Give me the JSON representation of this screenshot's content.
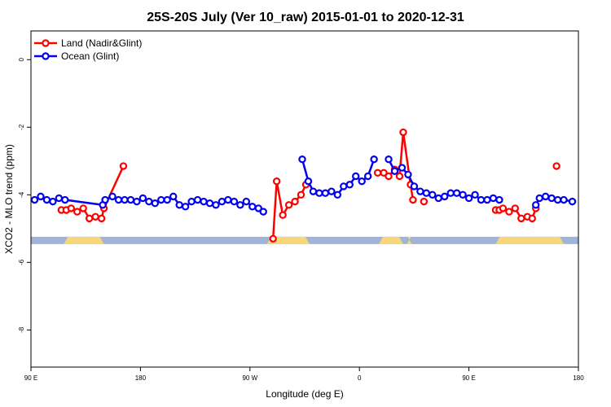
{
  "chart_data": {
    "type": "line",
    "title": "25S-20S July (Ver 10_raw)   2015-01-01 to 2020-12-31",
    "xlabel": "Longitude (deg E)",
    "ylabel": "XCO2 - MLO trend (ppm)",
    "x_ticks": [
      {
        "value": 90,
        "label": "90 E"
      },
      {
        "value": 180,
        "label": "180"
      },
      {
        "value": 270,
        "label": "90 W"
      },
      {
        "value": 360,
        "label": "0"
      },
      {
        "value": 450,
        "label": "90 E"
      },
      {
        "value": 540,
        "label": "180"
      }
    ],
    "y_ticks": [
      {
        "value": 0,
        "label": "0"
      },
      {
        "value": -2,
        "label": "-2"
      },
      {
        "value": -4,
        "label": "-4"
      },
      {
        "value": -6,
        "label": "-6"
      },
      {
        "value": -8,
        "label": "-8"
      }
    ],
    "xlim": [
      90,
      540
    ],
    "ylim": [
      -9.1,
      0.85
    ],
    "grid": false,
    "legend_position": "top-left",
    "surface_band": {
      "y": -5.35,
      "ocean_color": "#a0b4d8",
      "land_color": "#f8d77a",
      "land_ranges": [
        [
          117,
          150
        ],
        [
          284,
          319
        ],
        [
          376,
          396
        ],
        [
          399,
          403
        ],
        [
          472,
          528
        ]
      ]
    },
    "series": [
      {
        "name": "Land (Nadir&Glint)",
        "color": "#ff0000",
        "segments": [
          [
            [
              115,
              -4.45
            ],
            [
              119,
              -4.45
            ],
            [
              123,
              -4.4
            ],
            [
              128,
              -4.5
            ],
            [
              133,
              -4.4
            ],
            [
              138,
              -4.7
            ],
            [
              143,
              -4.65
            ],
            [
              148,
              -4.7
            ],
            [
              150,
              -4.4
            ],
            [
              166,
              -3.15
            ]
          ],
          [
            [
              289,
              -5.3
            ],
            [
              292,
              -3.6
            ],
            [
              297,
              -4.6
            ],
            [
              302,
              -4.3
            ],
            [
              307,
              -4.2
            ],
            [
              312,
              -4.0
            ],
            [
              316,
              -3.7
            ]
          ],
          [
            [
              375,
              -3.35
            ],
            [
              380,
              -3.35
            ],
            [
              384,
              -3.45
            ],
            [
              389,
              -3.25
            ],
            [
              393,
              -3.45
            ],
            [
              396,
              -2.15
            ],
            [
              402,
              -3.7
            ],
            [
              404,
              -4.15
            ]
          ],
          [
            [
              413,
              -4.2
            ]
          ],
          [
            [
              472,
              -4.45
            ],
            [
              475,
              -4.45
            ],
            [
              478,
              -4.4
            ],
            [
              483,
              -4.5
            ],
            [
              488,
              -4.4
            ],
            [
              493,
              -4.7
            ],
            [
              498,
              -4.65
            ],
            [
              502,
              -4.7
            ],
            [
              505,
              -4.4
            ]
          ],
          [
            [
              522,
              -3.15
            ]
          ]
        ]
      },
      {
        "name": "Ocean (Glint)",
        "color": "#0000ee",
        "segments": [
          [
            [
              93,
              -4.15
            ],
            [
              98,
              -4.05
            ],
            [
              103,
              -4.15
            ],
            [
              108,
              -4.2
            ],
            [
              113,
              -4.1
            ],
            [
              118,
              -4.15
            ],
            [
              149,
              -4.3
            ],
            [
              151,
              -4.15
            ],
            [
              157,
              -4.05
            ],
            [
              162,
              -4.15
            ],
            [
              167,
              -4.15
            ],
            [
              172,
              -4.15
            ],
            [
              177,
              -4.2
            ],
            [
              182,
              -4.1
            ],
            [
              187,
              -4.2
            ],
            [
              192,
              -4.25
            ],
            [
              197,
              -4.15
            ],
            [
              202,
              -4.15
            ],
            [
              207,
              -4.05
            ],
            [
              212,
              -4.3
            ],
            [
              217,
              -4.35
            ],
            [
              222,
              -4.2
            ],
            [
              227,
              -4.15
            ],
            [
              232,
              -4.2
            ],
            [
              237,
              -4.25
            ],
            [
              242,
              -4.3
            ],
            [
              247,
              -4.2
            ],
            [
              252,
              -4.15
            ],
            [
              257,
              -4.2
            ],
            [
              262,
              -4.3
            ],
            [
              267,
              -4.2
            ],
            [
              272,
              -4.35
            ],
            [
              277,
              -4.4
            ],
            [
              281,
              -4.5
            ]
          ],
          [
            [
              313,
              -2.95
            ],
            [
              318,
              -3.6
            ],
            [
              322,
              -3.9
            ],
            [
              327,
              -3.95
            ],
            [
              332,
              -3.95
            ],
            [
              337,
              -3.9
            ],
            [
              342,
              -4.0
            ],
            [
              347,
              -3.75
            ],
            [
              352,
              -3.7
            ],
            [
              357,
              -3.45
            ],
            [
              362,
              -3.6
            ],
            [
              367,
              -3.45
            ],
            [
              372,
              -2.95
            ]
          ],
          [
            [
              384,
              -2.95
            ],
            [
              389,
              -3.3
            ],
            [
              395,
              -3.2
            ],
            [
              400,
              -3.4
            ],
            [
              405,
              -3.75
            ],
            [
              410,
              -3.9
            ],
            [
              415,
              -3.95
            ],
            [
              420,
              -4.0
            ],
            [
              425,
              -4.1
            ],
            [
              430,
              -4.05
            ],
            [
              435,
              -3.95
            ],
            [
              440,
              -3.95
            ],
            [
              445,
              -4.0
            ],
            [
              450,
              -4.1
            ],
            [
              455,
              -4.0
            ],
            [
              460,
              -4.15
            ],
            [
              465,
              -4.15
            ],
            [
              470,
              -4.1
            ],
            [
              475,
              -4.15
            ]
          ],
          [
            [
              505,
              -4.3
            ],
            [
              508,
              -4.1
            ],
            [
              513,
              -4.05
            ],
            [
              518,
              -4.1
            ],
            [
              523,
              -4.15
            ],
            [
              528,
              -4.15
            ],
            [
              535,
              -4.2
            ]
          ]
        ]
      }
    ]
  }
}
